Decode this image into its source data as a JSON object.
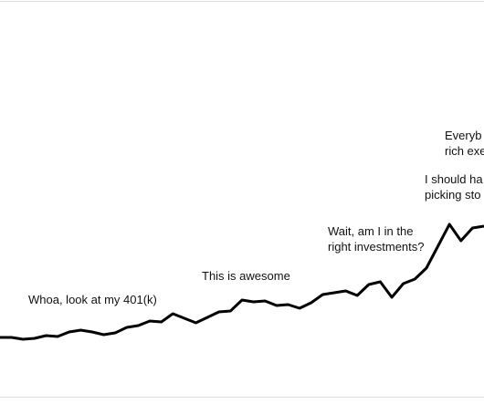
{
  "chart_data": {
    "type": "line",
    "x": [
      0,
      1,
      2,
      3,
      4,
      5,
      6,
      7,
      8,
      9,
      10,
      11,
      12,
      13,
      14,
      15,
      16,
      17,
      18,
      19,
      20,
      21,
      22,
      23,
      24,
      25,
      26,
      27,
      28,
      29,
      30,
      31,
      32,
      33,
      34,
      35,
      36,
      37,
      38,
      39,
      40,
      41,
      42
    ],
    "series": [
      {
        "color": "#000000",
        "values": [
          73,
          73,
          71,
          72,
          75,
          74,
          79,
          81,
          79,
          76,
          78,
          84,
          86,
          91,
          90,
          99,
          94,
          89,
          95,
          101,
          102,
          114,
          112,
          113,
          108,
          109,
          105,
          111,
          120,
          122,
          124,
          119,
          131,
          134,
          117,
          132,
          137,
          149,
          173,
          197,
          179,
          193,
          195
        ]
      }
    ],
    "xlim": [
      0,
      42
    ],
    "ylim": [
      0,
      443
    ],
    "annotations": [
      [
        "Whoa, look at my 401(k)"
      ],
      [
        "This is awesome"
      ],
      [
        "Wait, am I in the",
        "right investments?"
      ],
      [
        "I should ha",
        "picking sto"
      ],
      [
        "Everyb",
        "rich exe"
      ]
    ]
  }
}
